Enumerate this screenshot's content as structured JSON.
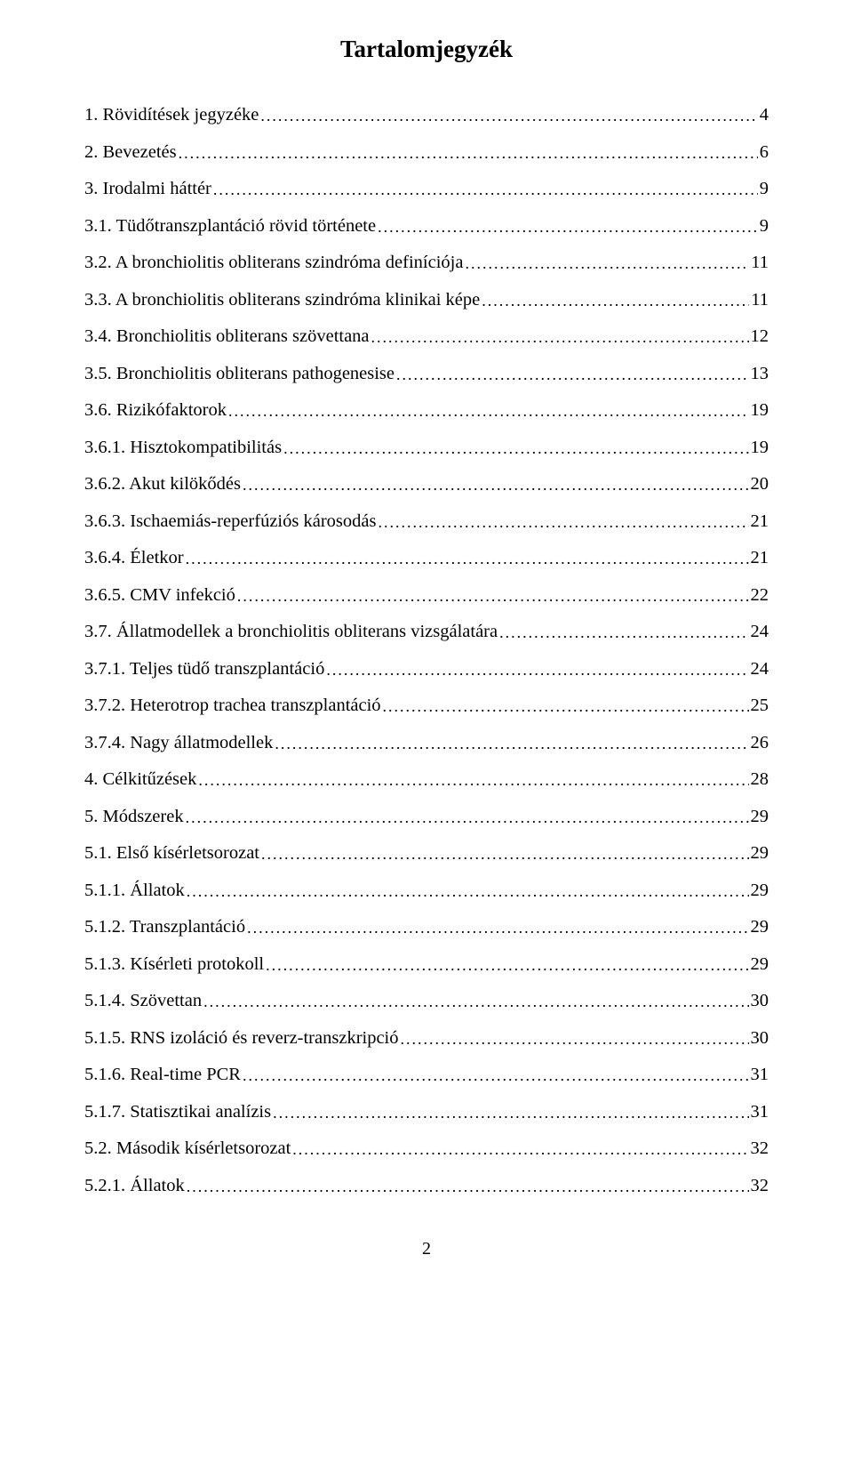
{
  "title": "Tartalomjegyzék",
  "pageNumber": "2",
  "entries": [
    {
      "label": "1. Rövidítések jegyzéke",
      "page": "4",
      "indent": 0
    },
    {
      "label": "2. Bevezetés",
      "page": "6",
      "indent": 0
    },
    {
      "label": "3. Irodalmi háttér",
      "page": "9",
      "indent": 0
    },
    {
      "label": "3.1. Tüdőtranszplantáció rövid története",
      "page": "9",
      "indent": 1
    },
    {
      "label": "3.2. A bronchiolitis obliterans szindróma definíciója",
      "page": "11",
      "indent": 1
    },
    {
      "label": "3.3. A bronchiolitis obliterans szindróma klinikai képe",
      "page": "11",
      "indent": 1
    },
    {
      "label": "3.4. Bronchiolitis obliterans szövettana",
      "page": "12",
      "indent": 1
    },
    {
      "label": "3.5. Bronchiolitis obliterans pathogenesise",
      "page": "13",
      "indent": 1
    },
    {
      "label": "3.6. Rizikófaktorok",
      "page": "19",
      "indent": 1
    },
    {
      "label": "3.6.1. Hisztokompatibilitás",
      "page": "19",
      "indent": 2
    },
    {
      "label": "3.6.2. Akut kilökődés",
      "page": "20",
      "indent": 2
    },
    {
      "label": "3.6.3. Ischaemiás-reperfúziós károsodás",
      "page": "21",
      "indent": 2
    },
    {
      "label": "3.6.4. Életkor",
      "page": "21",
      "indent": 2
    },
    {
      "label": "3.6.5. CMV infekció",
      "page": "22",
      "indent": 2
    },
    {
      "label": "3.7. Állatmodellek a bronchiolitis obliterans vizsgálatára",
      "page": "24",
      "indent": 1
    },
    {
      "label": "3.7.1. Teljes tüdő transzplantáció",
      "page": "24",
      "indent": 2
    },
    {
      "label": "3.7.2. Heterotrop trachea transzplantáció",
      "page": "25",
      "indent": 2
    },
    {
      "label": "3.7.4. Nagy állatmodellek",
      "page": "26",
      "indent": 2
    },
    {
      "label": "4. Célkitűzések",
      "page": "28",
      "indent": 0
    },
    {
      "label": "5. Módszerek",
      "page": "29",
      "indent": 0
    },
    {
      "label": "5.1. Első kísérletsorozat",
      "page": "29",
      "indent": 1
    },
    {
      "label": "5.1.1. Állatok",
      "page": "29",
      "indent": 2
    },
    {
      "label": "5.1.2. Transzplantáció",
      "page": "29",
      "indent": 2
    },
    {
      "label": "5.1.3. Kísérleti protokoll",
      "page": "29",
      "indent": 2
    },
    {
      "label": "5.1.4. Szövettan",
      "page": "30",
      "indent": 2
    },
    {
      "label": "5.1.5. RNS izoláció és reverz-transzkripció",
      "page": "30",
      "indent": 2
    },
    {
      "label": "5.1.6. Real-time PCR",
      "page": "31",
      "indent": 2
    },
    {
      "label": "5.1.7. Statisztikai analízis",
      "page": "31",
      "indent": 2
    },
    {
      "label": "5.2. Második kísérletsorozat",
      "page": "32",
      "indent": 1
    },
    {
      "label": "5.2.1. Állatok",
      "page": "32",
      "indent": 2
    }
  ]
}
